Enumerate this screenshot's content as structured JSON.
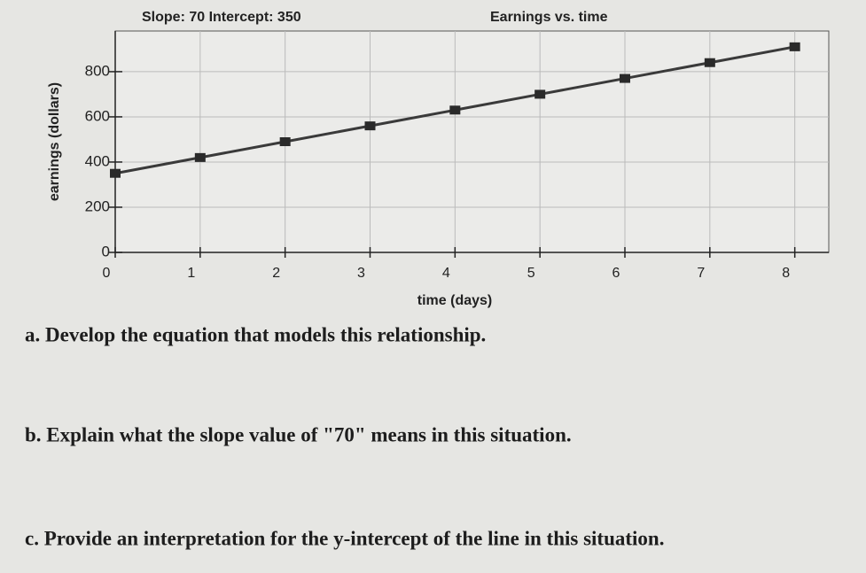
{
  "chart_data": {
    "type": "line",
    "title": "Earnings vs. time",
    "subtitle": "Slope: 70  Intercept: 350",
    "x_label": "time (days)",
    "y_label": "earnings (dollars)",
    "x": [
      0,
      1,
      2,
      3,
      4,
      5,
      6,
      7,
      8
    ],
    "values": [
      350,
      420,
      490,
      560,
      630,
      700,
      770,
      840,
      910
    ],
    "color": "#3a3a3a",
    "xlim": [
      0,
      8.4
    ],
    "xticks": [
      0,
      1,
      2,
      3,
      4,
      5,
      6,
      7,
      8
    ],
    "ylim": [
      0,
      980
    ],
    "yticks": [
      0,
      200,
      400,
      600,
      800
    ],
    "grid": true
  },
  "questions": [
    "a. Develop the equation that models this relationship.",
    "b. Explain what the slope value of \"70\" means in this situation.",
    "c. Provide an interpretation for the y-intercept of the line in this situation."
  ]
}
